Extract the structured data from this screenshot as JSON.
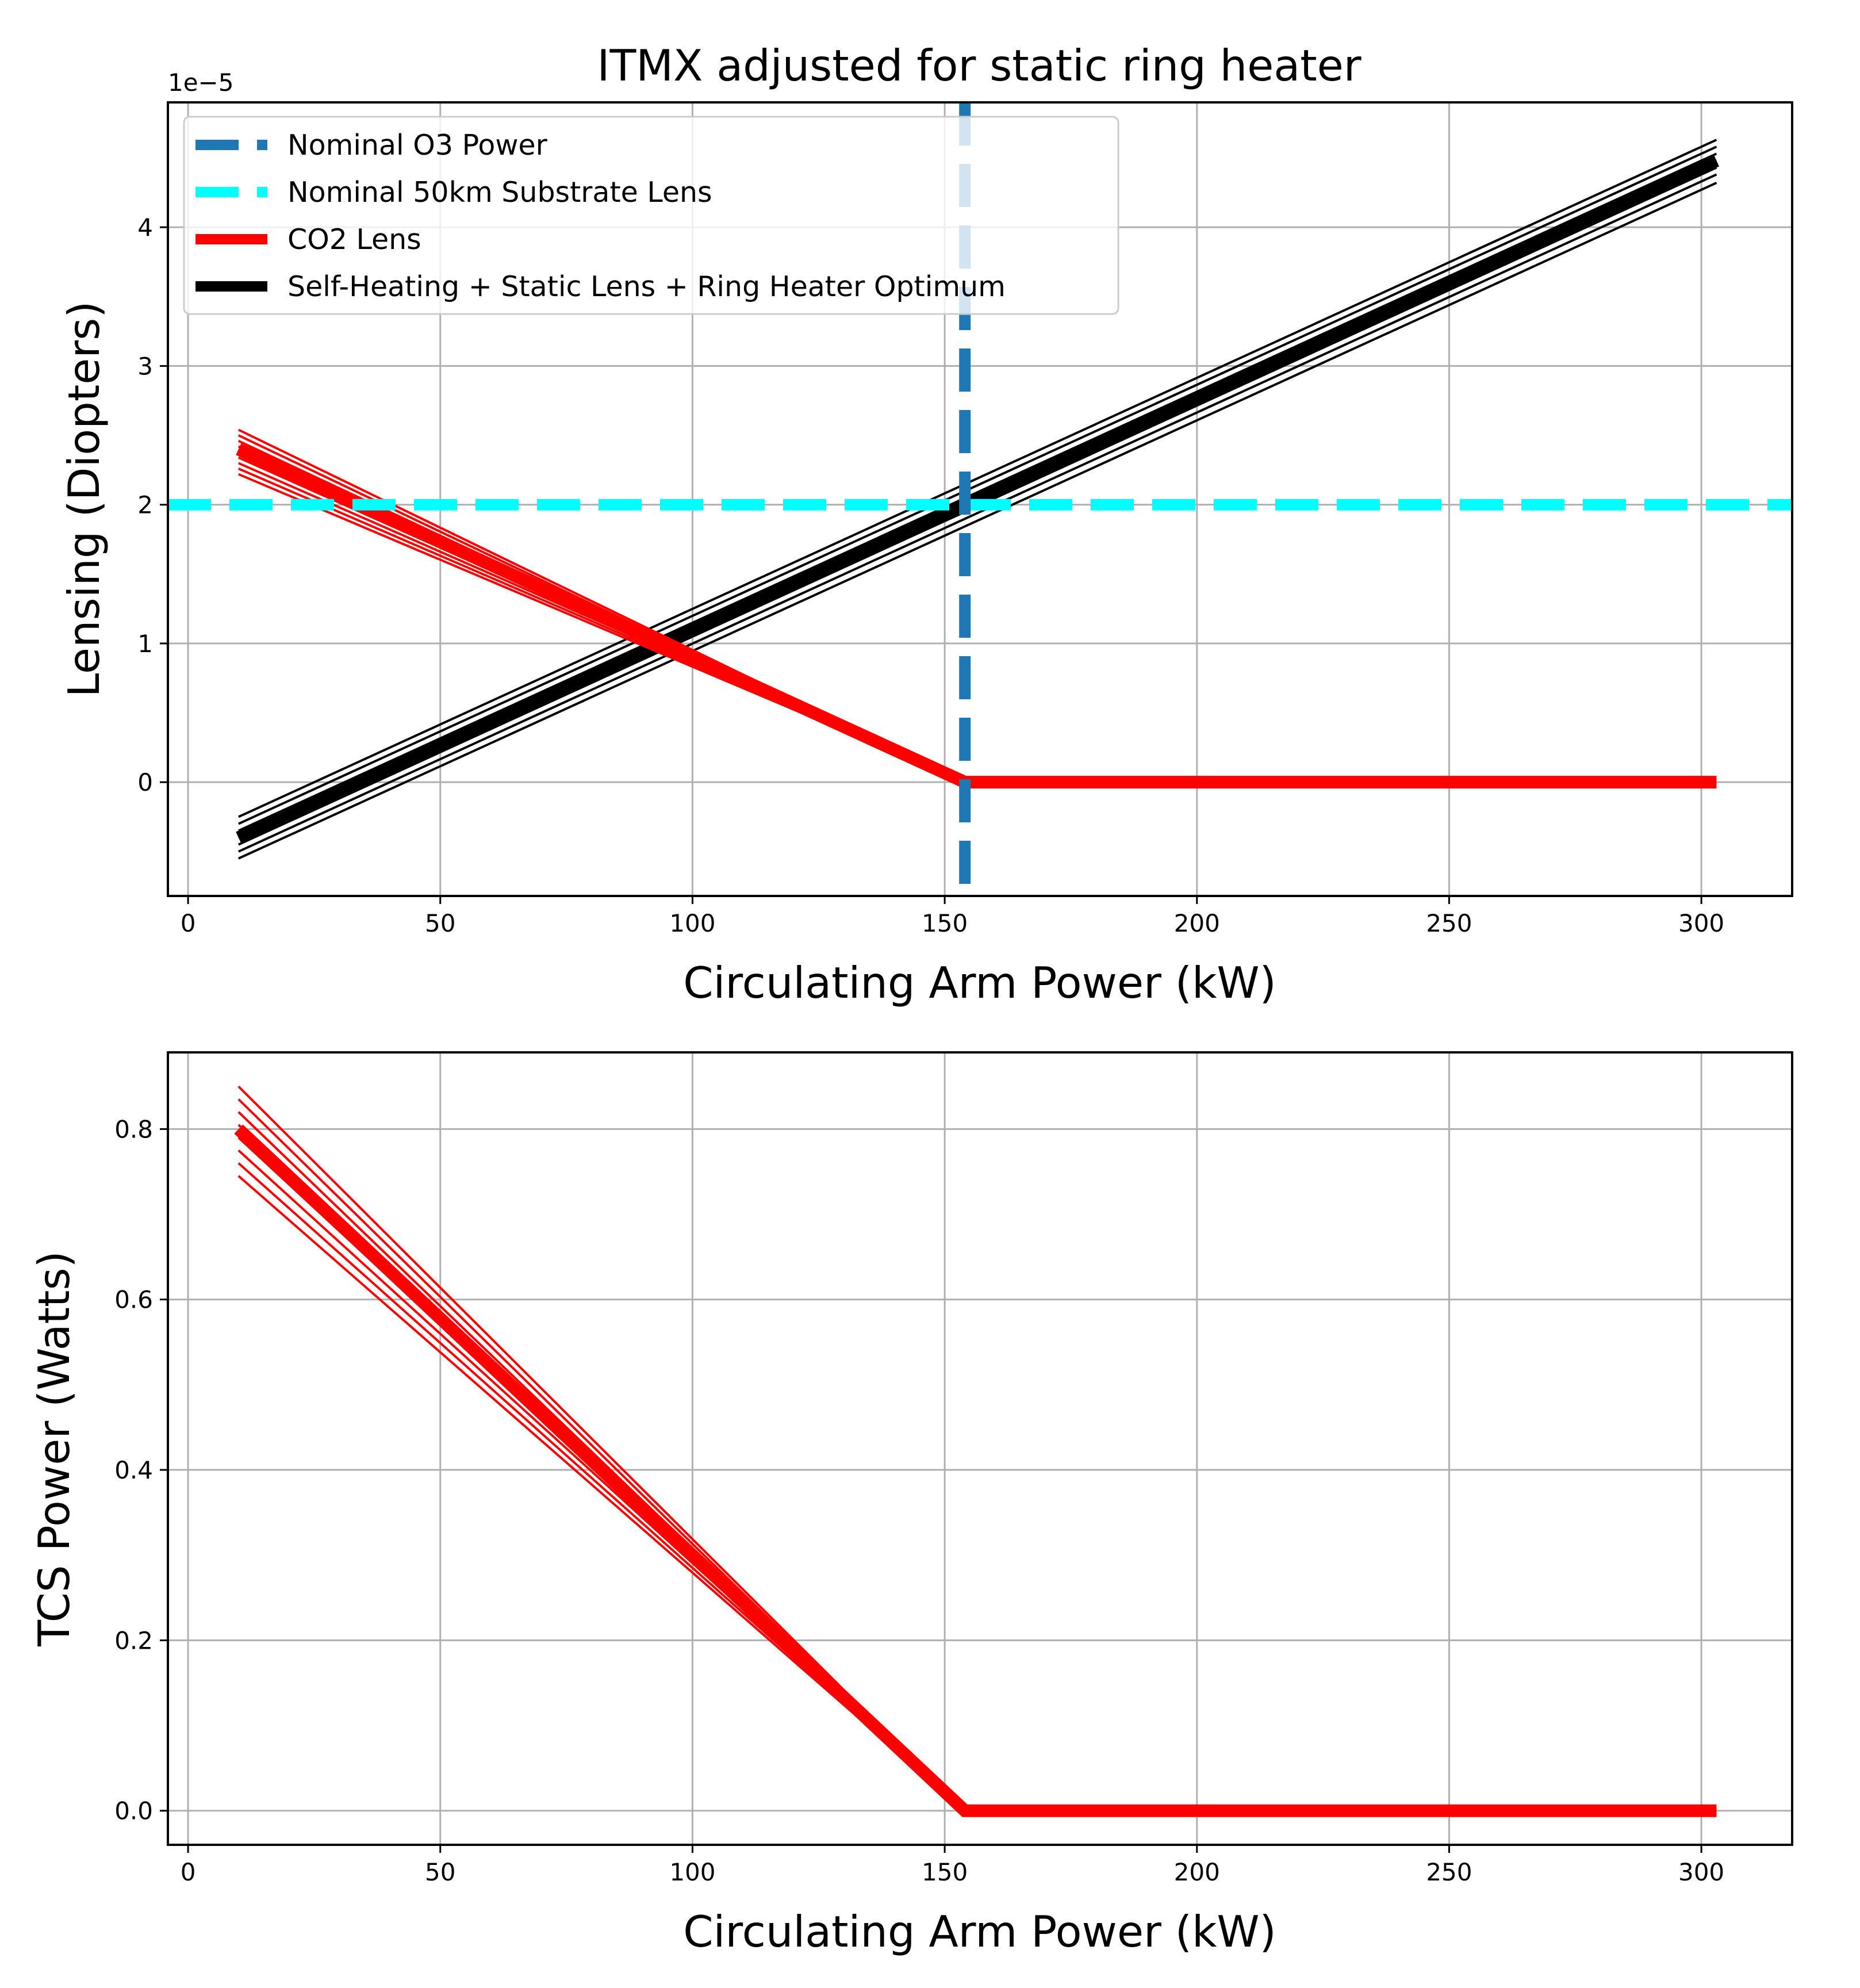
{
  "chart_data": [
    {
      "type": "line",
      "title": "ITMX adjusted for static ring heater",
      "xlabel": "Circulating Arm Power (kW)",
      "ylabel": "Lensing (Diopters)",
      "y_offset_text": "1e−5",
      "xlim": [
        -4,
        318
      ],
      "ylim": [
        -0.82,
        4.9
      ],
      "x_ticks": [
        0,
        50,
        100,
        150,
        200,
        250,
        300
      ],
      "y_ticks": [
        0,
        1,
        2,
        3,
        4
      ],
      "x_tick_labels": [
        "0",
        "50",
        "100",
        "150",
        "200",
        "250",
        "300"
      ],
      "y_tick_labels": [
        "0",
        "1",
        "2",
        "3",
        "4"
      ],
      "grid": true,
      "legend_position": "upper-left",
      "legend": [
        {
          "label": "Nominal O3 Power",
          "color": "#1f77b4",
          "style": "dashed"
        },
        {
          "label": "Nominal 50km Substrate Lens",
          "color": "#00ffff",
          "style": "dashed"
        },
        {
          "label": "CO2 Lens",
          "color": "#ff0000",
          "style": "solid"
        },
        {
          "label": "Self-Heating + Static Lens + Ring Heater Optimum",
          "color": "#000000",
          "style": "solid"
        }
      ],
      "reference_lines": [
        {
          "name": "Nominal O3 Power",
          "orientation": "vertical",
          "x": 154,
          "color": "#1f77b4",
          "style": "dashed"
        },
        {
          "name": "Nominal 50km Substrate Lens",
          "orientation": "horizontal",
          "y": 2.0,
          "color": "#00ffff",
          "style": "dashed"
        }
      ],
      "series": [
        {
          "name": "CO2 Lens",
          "color": "#ff0000",
          "x": [
            10,
            154,
            303
          ],
          "y": [
            2.4,
            0,
            0
          ],
          "family_y_start": [
            2.22,
            2.26,
            2.3,
            2.34,
            2.38,
            2.42,
            2.46,
            2.5,
            2.54
          ]
        },
        {
          "name": "Self-Heating + Static Lens + Ring Heater Optimum",
          "color": "#000000",
          "x": [
            10,
            154,
            303
          ],
          "y": [
            -0.4,
            2.0,
            4.48
          ],
          "family_y_start": [
            -0.55,
            -0.5,
            -0.45,
            -0.4,
            -0.35,
            -0.3,
            -0.25
          ],
          "family_y_end": [
            4.32,
            4.38,
            4.43,
            4.48,
            4.53,
            4.58,
            4.63
          ]
        }
      ]
    },
    {
      "type": "line",
      "xlabel": "Circulating Arm Power (kW)",
      "ylabel": "TCS Power (Watts)",
      "xlim": [
        -4,
        318
      ],
      "ylim": [
        -0.04,
        0.89
      ],
      "x_ticks": [
        0,
        50,
        100,
        150,
        200,
        250,
        300
      ],
      "y_ticks": [
        0.0,
        0.2,
        0.4,
        0.6,
        0.8
      ],
      "x_tick_labels": [
        "0",
        "50",
        "100",
        "150",
        "200",
        "250",
        "300"
      ],
      "y_tick_labels": [
        "0.0",
        "0.2",
        "0.4",
        "0.6",
        "0.8"
      ],
      "grid": true,
      "series": [
        {
          "color": "#ff0000",
          "x": [
            10,
            154,
            303
          ],
          "y": [
            0.8,
            0,
            0
          ],
          "family_y_start": [
            0.745,
            0.76,
            0.775,
            0.79,
            0.805,
            0.82,
            0.835,
            0.85
          ]
        }
      ]
    }
  ]
}
